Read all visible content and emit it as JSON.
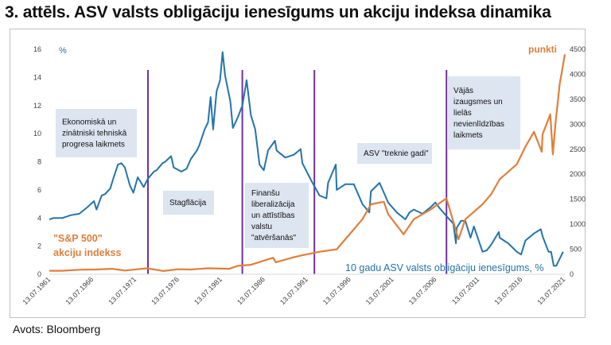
{
  "title": "3. attēls. ASV valsts obligāciju ienesīgums un akciju indeksa dinamika",
  "source": "Avots: Bloomberg",
  "colors": {
    "yield": "#2474aa",
    "sp500": "#e07f3a",
    "divider": "#7030a0",
    "box": "#dde5f1",
    "axis_text": "#404040"
  },
  "chart_data": {
    "type": "line",
    "title": "3. attēls. ASV valsts obligāciju ienesīgums un akciju indeksa dinamika",
    "x_ticks": [
      "13.07.1961",
      "13.07.1966",
      "13.07.1971",
      "13.07.1976",
      "13.07.1981",
      "13.07.1986",
      "13.07.1991",
      "13.07.1996",
      "13.07.2001",
      "13.07.2006",
      "13.07.2011",
      "13.07.2016",
      "13.07.2021"
    ],
    "xlim": [
      1961.5,
      2021.6
    ],
    "y_left": {
      "label": "%",
      "ticks": [
        0,
        2,
        4,
        6,
        8,
        10,
        12,
        14,
        16
      ],
      "lim": [
        0,
        16
      ]
    },
    "y_right": {
      "label": "punkti",
      "ticks": [
        0,
        500,
        1000,
        1500,
        2000,
        2500,
        3000,
        3500,
        4000,
        4500
      ],
      "lim": [
        0,
        4500
      ]
    },
    "grid": false,
    "series": [
      {
        "name": "10 gadu ASV valsts obligāciju ienesīgums, %",
        "axis": "left",
        "x": [
          1961.5,
          1962,
          1963,
          1964,
          1965,
          1966,
          1966.7,
          1967,
          1967.6,
          1968,
          1968.6,
          1969,
          1969.5,
          1969.9,
          1970.3,
          1970.9,
          1971.3,
          1971.8,
          1972.5,
          1973,
          1973.7,
          1974,
          1974.7,
          1975,
          1975.7,
          1976,
          1976.9,
          1977.5,
          1978,
          1978.7,
          1979,
          1979.6,
          1980,
          1980.3,
          1980.6,
          1981,
          1981.4,
          1981.7,
          1982,
          1982.6,
          1982.9,
          1983.5,
          1984,
          1984.5,
          1985,
          1985.5,
          1986,
          1986.5,
          1987,
          1987.8,
          1988,
          1989,
          1990,
          1990.8,
          1991,
          1992,
          1993,
          1993.8,
          1994,
          1994.9,
          1995,
          1996,
          1997,
          1998,
          1998.8,
          1999,
          2000,
          2000.5,
          2001,
          2002,
          2003,
          2003.5,
          2004,
          2005,
          2006,
          2006.5,
          2007,
          2008,
          2008.6,
          2008.9,
          2009,
          2009.5,
          2010,
          2010.6,
          2011,
          2012,
          2012.5,
          2013,
          2013.9,
          2014,
          2015,
          2016,
          2016.5,
          2017,
          2018,
          2018.8,
          2019,
          2019.7,
          2020,
          2020.3,
          2020.6,
          2021,
          2021.4
        ],
        "y": [
          3.9,
          4.0,
          4.0,
          4.2,
          4.3,
          4.8,
          5.2,
          4.6,
          5.6,
          5.7,
          6.1,
          6.9,
          7.8,
          7.9,
          7.6,
          6.3,
          5.8,
          6.9,
          6.2,
          6.8,
          7.3,
          7.4,
          7.9,
          8.0,
          8.4,
          7.6,
          7.3,
          7.5,
          8.2,
          8.8,
          9.2,
          10.3,
          10.8,
          12.6,
          10.3,
          13.0,
          13.8,
          15.8,
          14.1,
          12.3,
          10.4,
          11.2,
          12.0,
          13.8,
          11.3,
          10.3,
          7.8,
          7.4,
          8.8,
          9.5,
          8.8,
          8.3,
          8.5,
          8.9,
          7.9,
          6.7,
          5.6,
          5.4,
          6.5,
          7.8,
          6.0,
          6.4,
          6.4,
          5.0,
          4.4,
          5.9,
          6.5,
          5.8,
          5.1,
          4.4,
          3.9,
          4.4,
          4.6,
          4.3,
          4.8,
          5.1,
          4.7,
          4.0,
          3.6,
          2.2,
          3.3,
          3.8,
          3.8,
          2.6,
          3.4,
          1.6,
          1.7,
          2.1,
          3.0,
          2.6,
          2.2,
          1.6,
          1.4,
          2.4,
          2.9,
          3.2,
          2.7,
          1.6,
          1.6,
          0.6,
          0.6,
          1.1,
          1.6
        ]
      },
      {
        "name": "\"S&P 500\" akciju indekss",
        "axis": "right",
        "x": [
          1961.5,
          1963,
          1965,
          1967,
          1968.8,
          1970.3,
          1972.9,
          1974.8,
          1976.5,
          1978,
          1980,
          1982.5,
          1983.5,
          1985,
          1987.6,
          1987.9,
          1990,
          1991,
          1993,
          1995,
          1996,
          1997,
          1998,
          1999,
          2000.5,
          2001,
          2002.8,
          2004,
          2006,
          2007.8,
          2009.2,
          2010,
          2011,
          2012,
          2013,
          2014,
          2015,
          2016,
          2017,
          2018,
          2018.9,
          2019,
          2019.9,
          2020.2,
          2020.5,
          2021,
          2021.6
        ],
        "y": [
          70,
          70,
          90,
          95,
          110,
          75,
          120,
          65,
          100,
          95,
          120,
          110,
          170,
          190,
          330,
          240,
          340,
          380,
          450,
          500,
          700,
          900,
          1100,
          1400,
          1450,
          1200,
          800,
          1100,
          1300,
          1520,
          700,
          1100,
          1250,
          1400,
          1600,
          1900,
          2050,
          2200,
          2550,
          2850,
          2450,
          2800,
          3200,
          2400,
          3000,
          3800,
          4400
        ]
      }
    ],
    "series_labels": [
      {
        "series": 0,
        "text": "10 gadu ASV valsts obligāciju ienesīgums, %"
      },
      {
        "series": 1,
        "line1": "\"S&P 500\"",
        "line2": "akciju indekss"
      }
    ],
    "dividers": [
      1973.0,
      1984.0,
      1992.4,
      2007.8
    ],
    "annotations": [
      {
        "lines": [
          "Ekonomiskā un",
          "zinātniski tehniskā",
          "progresa laikmets"
        ]
      },
      {
        "lines": [
          "Stagflācija"
        ]
      },
      {
        "lines": [
          "Finanšu",
          "liberalizācija",
          "un attīstības",
          "valstu",
          "\"atvēršanās\""
        ]
      },
      {
        "lines": [
          "ASV \"treknie gadi\""
        ]
      },
      {
        "lines": [
          "Vājās",
          "izaugsmes un",
          "lielās",
          "nevienlīdzības",
          "laikmets"
        ]
      }
    ]
  }
}
